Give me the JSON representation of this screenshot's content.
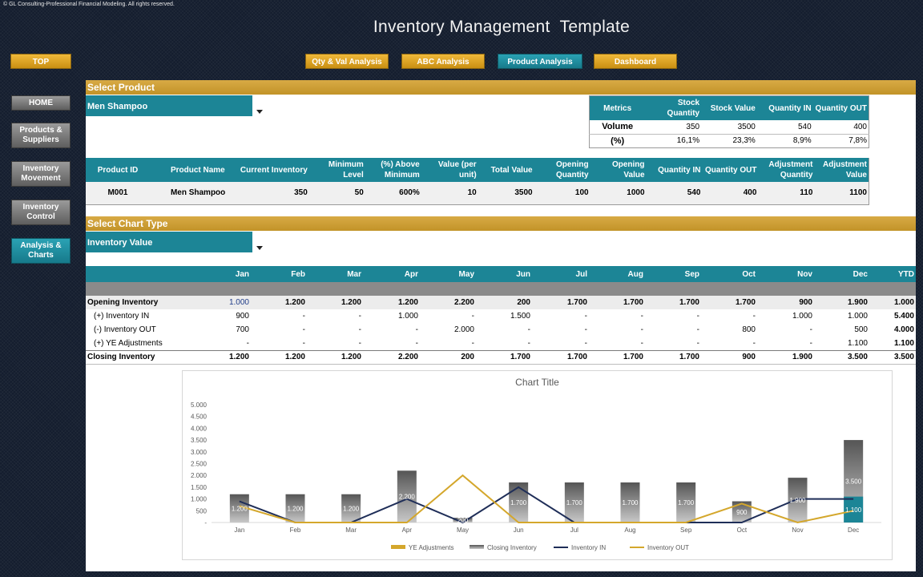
{
  "copyright": "© GL Consulting-Professional Financial Modeling. All rights reserved.",
  "title": "Inventory Management  Template",
  "top_button": "TOP",
  "nav_buttons": [
    "Qty & Val Analysis",
    "ABC Analysis",
    "Product Analysis",
    "Dashboard"
  ],
  "sidebar": [
    "HOME",
    "Products & Suppliers",
    "Inventory Movement",
    "Inventory Control",
    "Analysis & Charts"
  ],
  "select_product": {
    "header": "Select Product",
    "value": "Men Shampoo"
  },
  "metrics": {
    "headers": [
      "Metrics",
      "Stock Quantity",
      "Stock Value",
      "Quantity IN",
      "Quantity OUT"
    ],
    "rows": [
      [
        "Volume",
        "350",
        "3500",
        "540",
        "400"
      ],
      [
        "(%)",
        "16,1%",
        "23,3%",
        "8,9%",
        "7,8%"
      ]
    ]
  },
  "product_table": {
    "headers": [
      "Product ID",
      "Product Name",
      "Current Inventory",
      "Minimum Level",
      "(%) Above Minimum",
      "Value (per unit)",
      "Total Value",
      "Opening Quantity",
      "Opening Value",
      "Quantity IN",
      "Quantity OUT",
      "Adjustment Quantity",
      "Adjustment Value"
    ],
    "row": [
      "M001",
      "Men Shampoo",
      "350",
      "50",
      "600%",
      "10",
      "3500",
      "100",
      "1000",
      "540",
      "400",
      "110",
      "1100"
    ]
  },
  "select_chart": {
    "header": "Select Chart Type",
    "value": "Inventory Value"
  },
  "inventory_table": {
    "months": [
      "Jan",
      "Feb",
      "Mar",
      "Apr",
      "May",
      "Jun",
      "Jul",
      "Aug",
      "Sep",
      "Oct",
      "Nov",
      "Dec",
      "YTD"
    ],
    "rows": [
      {
        "label": "Opening Inventory",
        "values": [
          "1.000",
          "1.200",
          "1.200",
          "1.200",
          "2.200",
          "200",
          "1.700",
          "1.700",
          "1.700",
          "1.700",
          "900",
          "1.900",
          "1.000"
        ]
      },
      {
        "label": "(+) Inventory IN",
        "values": [
          "900",
          "-",
          "-",
          "1.000",
          "-",
          "1.500",
          "-",
          "-",
          "-",
          "-",
          "1.000",
          "1.000",
          "5.400"
        ]
      },
      {
        "label": "(-) Inventory OUT",
        "values": [
          "700",
          "-",
          "-",
          "-",
          "2.000",
          "-",
          "-",
          "-",
          "-",
          "800",
          "-",
          "500",
          "4.000"
        ]
      },
      {
        "label": "(+) YE Adjustments",
        "values": [
          "-",
          "-",
          "-",
          "-",
          "-",
          "-",
          "-",
          "-",
          "-",
          "-",
          "-",
          "1.100",
          "1.100"
        ]
      },
      {
        "label": "Closing Inventory",
        "values": [
          "1.200",
          "1.200",
          "1.200",
          "2.200",
          "200",
          "1.700",
          "1.700",
          "1.700",
          "1.700",
          "900",
          "1.900",
          "3.500",
          "3.500"
        ]
      }
    ]
  },
  "chart_data": {
    "type": "bar",
    "title": "Chart Title",
    "categories": [
      "Jan",
      "Feb",
      "Mar",
      "Apr",
      "May",
      "Jun",
      "Jul",
      "Aug",
      "Sep",
      "Oct",
      "Nov",
      "Dec"
    ],
    "y_ticks": [
      "-",
      "500",
      "1.000",
      "1.500",
      "2.000",
      "2.500",
      "3.000",
      "3.500",
      "4.000",
      "4.500",
      "5.000"
    ],
    "ylim": [
      0,
      5000
    ],
    "legend_placement": "bottom",
    "series": [
      {
        "name": "YE Adjustments",
        "kind": "stacked-bar",
        "color": "#1c8596",
        "values": [
          0,
          0,
          0,
          0,
          0,
          0,
          0,
          0,
          0,
          0,
          0,
          1100
        ],
        "labels": [
          "",
          "",
          "",
          "",
          "",
          "",
          "",
          "",
          "",
          "",
          "",
          "1.100"
        ]
      },
      {
        "name": "Closing Inventory",
        "kind": "bar",
        "color": "#6e6e6e",
        "values": [
          1200,
          1200,
          1200,
          2200,
          200,
          1700,
          1700,
          1700,
          1700,
          900,
          1900,
          3500
        ],
        "labels": [
          "1.200",
          "1.200",
          "1.200",
          "2.200",
          "200",
          "1.700",
          "1.700",
          "1.700",
          "1.700",
          "900",
          "1.900",
          "3.500"
        ]
      },
      {
        "name": "Inventory IN",
        "kind": "line",
        "color": "#1f2e58",
        "values": [
          900,
          0,
          0,
          1000,
          0,
          1500,
          0,
          0,
          0,
          0,
          1000,
          1000
        ]
      },
      {
        "name": "Inventory OUT",
        "kind": "line",
        "color": "#d4a72c",
        "values": [
          700,
          0,
          0,
          0,
          2000,
          0,
          0,
          0,
          0,
          800,
          0,
          500
        ]
      }
    ],
    "legend_colors": {
      "YE Adjustments": "#d4a72c",
      "Closing Inventory": "#6e6e6e",
      "Inventory IN": "#1f2e58",
      "Inventory OUT": "#d4a72c"
    }
  }
}
